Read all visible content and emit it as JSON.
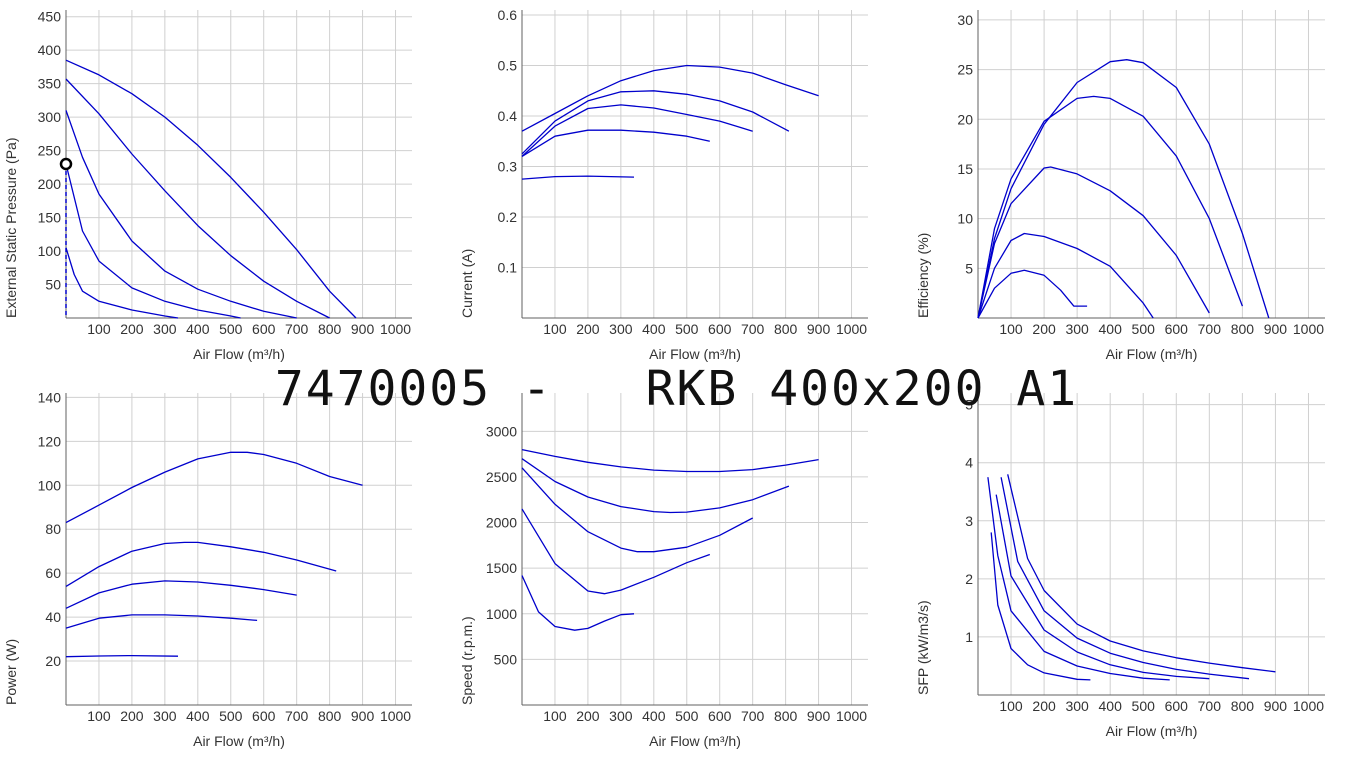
{
  "title": "7470005 -   RKB 400x200 A1",
  "colors": {
    "curve": "#0000cc",
    "grid": "#d0d0d0",
    "axis": "#606060",
    "text": "#333333",
    "marker": "#000000",
    "title": "#111111"
  },
  "chart_data": [
    {
      "type": "line",
      "name": "pressure",
      "xlabel": "Air Flow (m³/h)",
      "ylabel": "External Static Pressure (Pa)",
      "xlim": [
        0,
        1050
      ],
      "ylim": [
        0,
        460
      ],
      "xticks": [
        100,
        200,
        300,
        400,
        500,
        600,
        700,
        800,
        900,
        1000
      ],
      "yticks": [
        50,
        100,
        150,
        200,
        250,
        300,
        350,
        400,
        450
      ],
      "series": [
        {
          "x": [
            0,
            100,
            200,
            300,
            400,
            500,
            600,
            700,
            800,
            880
          ],
          "y": [
            385,
            363,
            335,
            300,
            258,
            210,
            158,
            102,
            40,
            0
          ]
        },
        {
          "x": [
            0,
            100,
            200,
            300,
            400,
            500,
            600,
            700,
            800
          ],
          "y": [
            357,
            305,
            245,
            190,
            138,
            93,
            55,
            25,
            0
          ]
        },
        {
          "x": [
            0,
            50,
            100,
            200,
            300,
            400,
            500,
            600,
            700
          ],
          "y": [
            310,
            240,
            185,
            115,
            70,
            43,
            25,
            10,
            0
          ]
        },
        {
          "x": [
            0,
            50,
            100,
            200,
            300,
            400,
            500,
            530
          ],
          "y": [
            230,
            130,
            85,
            45,
            25,
            12,
            3,
            0
          ]
        },
        {
          "x": [
            0,
            25,
            50,
            100,
            200,
            300,
            340
          ],
          "y": [
            105,
            65,
            40,
            25,
            12,
            3,
            0
          ]
        }
      ],
      "marker": {
        "x": 0,
        "y": 230
      }
    },
    {
      "type": "line",
      "name": "current",
      "xlabel": "Air Flow (m³/h)",
      "ylabel": "Current (A)",
      "xlim": [
        0,
        1050
      ],
      "ylim": [
        0,
        0.61
      ],
      "xticks": [
        100,
        200,
        300,
        400,
        500,
        600,
        700,
        800,
        900,
        1000
      ],
      "yticks": [
        0.1,
        0.2,
        0.3,
        0.4,
        0.5,
        0.6
      ],
      "series": [
        {
          "x": [
            0,
            100,
            200,
            300,
            400,
            500,
            600,
            700,
            800,
            900
          ],
          "y": [
            0.37,
            0.405,
            0.44,
            0.47,
            0.49,
            0.5,
            0.497,
            0.485,
            0.462,
            0.44
          ]
        },
        {
          "x": [
            0,
            100,
            200,
            300,
            400,
            500,
            600,
            700,
            810
          ],
          "y": [
            0.325,
            0.39,
            0.43,
            0.448,
            0.45,
            0.443,
            0.43,
            0.408,
            0.37
          ]
        },
        {
          "x": [
            0,
            100,
            200,
            300,
            400,
            500,
            600,
            700
          ],
          "y": [
            0.32,
            0.38,
            0.415,
            0.422,
            0.416,
            0.403,
            0.39,
            0.37
          ]
        },
        {
          "x": [
            0,
            100,
            200,
            300,
            400,
            500,
            570
          ],
          "y": [
            0.32,
            0.36,
            0.372,
            0.372,
            0.368,
            0.36,
            0.35
          ]
        },
        {
          "x": [
            0,
            100,
            200,
            340
          ],
          "y": [
            0.275,
            0.28,
            0.281,
            0.279
          ]
        }
      ]
    },
    {
      "type": "line",
      "name": "efficiency",
      "xlabel": "Air Flow (m³/h)",
      "ylabel": "Efficiency (%)",
      "xlim": [
        0,
        1050
      ],
      "ylim": [
        0,
        31
      ],
      "xticks": [
        100,
        200,
        300,
        400,
        500,
        600,
        700,
        800,
        900,
        1000
      ],
      "yticks": [
        5,
        10,
        15,
        20,
        25,
        30
      ],
      "series": [
        {
          "x": [
            0,
            50,
            100,
            200,
            300,
            400,
            450,
            500,
            600,
            700,
            800,
            880
          ],
          "y": [
            0,
            8,
            13,
            19.5,
            23.7,
            25.8,
            26,
            25.7,
            23.2,
            17.5,
            8.5,
            0
          ]
        },
        {
          "x": [
            0,
            50,
            100,
            200,
            300,
            350,
            400,
            500,
            600,
            700,
            800
          ],
          "y": [
            0,
            9,
            14,
            19.8,
            22.1,
            22.3,
            22.1,
            20.3,
            16.3,
            10,
            1.2
          ]
        },
        {
          "x": [
            0,
            50,
            100,
            200,
            220,
            300,
            400,
            500,
            600,
            700
          ],
          "y": [
            0,
            7.5,
            11.5,
            15.1,
            15.2,
            14.5,
            12.8,
            10.3,
            6.3,
            0.5
          ]
        },
        {
          "x": [
            0,
            50,
            100,
            140,
            200,
            300,
            400,
            500,
            530
          ],
          "y": [
            0,
            5,
            7.8,
            8.5,
            8.2,
            7,
            5.2,
            1.5,
            0
          ]
        },
        {
          "x": [
            0,
            50,
            100,
            140,
            200,
            250,
            290,
            330
          ],
          "y": [
            0,
            3,
            4.5,
            4.8,
            4.3,
            2.8,
            1.2,
            1.2
          ]
        }
      ]
    },
    {
      "type": "line",
      "name": "power",
      "xlabel": "Air Flow (m³/h)",
      "ylabel": "Power (W)",
      "xlim": [
        0,
        1050
      ],
      "ylim": [
        0,
        142
      ],
      "xticks": [
        100,
        200,
        300,
        400,
        500,
        600,
        700,
        800,
        900,
        1000
      ],
      "yticks": [
        20,
        40,
        60,
        80,
        100,
        120,
        140
      ],
      "series": [
        {
          "x": [
            0,
            100,
            200,
            300,
            400,
            500,
            550,
            600,
            700,
            800,
            900
          ],
          "y": [
            83,
            91,
            99,
            106,
            112,
            115,
            115,
            114,
            110,
            104,
            100
          ]
        },
        {
          "x": [
            0,
            100,
            200,
            300,
            360,
            400,
            500,
            600,
            700,
            820
          ],
          "y": [
            54,
            63,
            70,
            73.5,
            74,
            74,
            72,
            69.5,
            66,
            61
          ]
        },
        {
          "x": [
            0,
            100,
            200,
            300,
            400,
            500,
            600,
            700
          ],
          "y": [
            44,
            51,
            55,
            56.5,
            56,
            54.5,
            52.5,
            50
          ]
        },
        {
          "x": [
            0,
            100,
            200,
            300,
            400,
            500,
            580
          ],
          "y": [
            35,
            39.5,
            41,
            41,
            40.5,
            39.5,
            38.5
          ]
        },
        {
          "x": [
            0,
            100,
            200,
            340
          ],
          "y": [
            22,
            22.3,
            22.5,
            22.2
          ]
        }
      ]
    },
    {
      "type": "line",
      "name": "speed",
      "xlabel": "Air Flow (m³/h)",
      "ylabel": "Speed (r.p.m.)",
      "xlim": [
        0,
        1050
      ],
      "ylim": [
        0,
        3420
      ],
      "xticks": [
        100,
        200,
        300,
        400,
        500,
        600,
        700,
        800,
        900,
        1000
      ],
      "yticks": [
        500,
        1000,
        1500,
        2000,
        2500,
        3000
      ],
      "series": [
        {
          "x": [
            0,
            100,
            200,
            300,
            400,
            500,
            600,
            700,
            800,
            900
          ],
          "y": [
            2800,
            2725,
            2660,
            2610,
            2575,
            2560,
            2560,
            2580,
            2630,
            2690
          ]
        },
        {
          "x": [
            0,
            100,
            200,
            300,
            400,
            450,
            500,
            600,
            700,
            810
          ],
          "y": [
            2700,
            2450,
            2280,
            2175,
            2120,
            2110,
            2115,
            2160,
            2250,
            2400
          ]
        },
        {
          "x": [
            0,
            100,
            200,
            300,
            350,
            400,
            500,
            600,
            700
          ],
          "y": [
            2600,
            2200,
            1900,
            1720,
            1680,
            1680,
            1730,
            1860,
            2050
          ]
        },
        {
          "x": [
            0,
            100,
            200,
            250,
            300,
            400,
            500,
            570
          ],
          "y": [
            2150,
            1550,
            1250,
            1220,
            1260,
            1400,
            1560,
            1650
          ]
        },
        {
          "x": [
            0,
            50,
            100,
            160,
            200,
            250,
            300,
            340
          ],
          "y": [
            1420,
            1020,
            860,
            820,
            840,
            920,
            990,
            1000
          ]
        }
      ]
    },
    {
      "type": "line",
      "name": "sfp",
      "xlabel": "Air Flow (m³/h)",
      "ylabel": "SFP (kW/m3/s)",
      "xlim": [
        0,
        1050
      ],
      "ylim": [
        0,
        5.2
      ],
      "xticks": [
        100,
        200,
        300,
        400,
        500,
        600,
        700,
        800,
        900,
        1000
      ],
      "yticks": [
        1,
        2,
        3,
        4,
        5
      ],
      "series": [
        {
          "x": [
            90,
            150,
            200,
            300,
            400,
            500,
            600,
            700,
            800,
            900
          ],
          "y": [
            3.8,
            2.35,
            1.8,
            1.22,
            0.93,
            0.76,
            0.64,
            0.55,
            0.47,
            0.4
          ]
        },
        {
          "x": [
            70,
            120,
            200,
            300,
            400,
            500,
            600,
            700,
            820
          ],
          "y": [
            3.75,
            2.3,
            1.45,
            0.98,
            0.72,
            0.56,
            0.44,
            0.36,
            0.28
          ]
        },
        {
          "x": [
            55,
            100,
            200,
            300,
            400,
            500,
            600,
            700
          ],
          "y": [
            3.45,
            2.05,
            1.12,
            0.74,
            0.52,
            0.39,
            0.32,
            0.28
          ]
        },
        {
          "x": [
            30,
            60,
            100,
            200,
            300,
            400,
            500,
            580
          ],
          "y": [
            3.75,
            2.4,
            1.45,
            0.75,
            0.5,
            0.37,
            0.29,
            0.26
          ]
        },
        {
          "x": [
            40,
            60,
            100,
            150,
            200,
            300,
            340
          ],
          "y": [
            2.8,
            1.55,
            0.8,
            0.52,
            0.38,
            0.27,
            0.26
          ]
        }
      ]
    }
  ]
}
